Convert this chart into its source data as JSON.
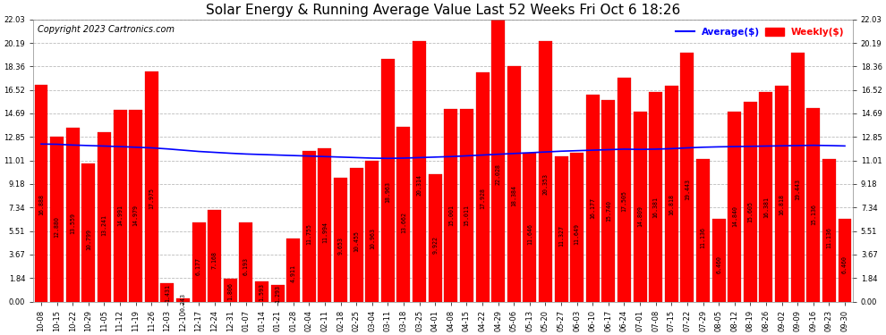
{
  "title": "Solar Energy & Running Average Value Last 52 Weeks Fri Oct 6 18:26",
  "copyright": "Copyright 2023 Cartronics.com",
  "categories": [
    "10-08",
    "10-15",
    "10-22",
    "10-29",
    "11-05",
    "11-12",
    "11-19",
    "11-26",
    "12-03",
    "12-10",
    "12-17",
    "12-24",
    "12-31",
    "01-07",
    "01-14",
    "01-21",
    "01-28",
    "02-04",
    "02-11",
    "02-18",
    "02-25",
    "03-04",
    "03-11",
    "03-18",
    "03-25",
    "04-01",
    "04-08",
    "04-15",
    "04-22",
    "04-29",
    "05-06",
    "05-13",
    "05-20",
    "05-27",
    "06-03",
    "06-10",
    "06-17",
    "06-24",
    "07-01",
    "07-08",
    "07-15",
    "07-22",
    "07-29",
    "08-05",
    "08-12",
    "08-19",
    "08-26",
    "09-02",
    "09-09",
    "09-16",
    "09-23",
    "09-30"
  ],
  "weekly_values": [
    16.888,
    12.88,
    13.559,
    10.799,
    13.241,
    14.991,
    14.979,
    17.975,
    1.431,
    0.243,
    6.177,
    7.168,
    1.806,
    6.193,
    1.593,
    1.293,
    4.911,
    11.755,
    11.994,
    9.653,
    10.455,
    10.963,
    18.963,
    13.662,
    20.314,
    9.922,
    15.001,
    15.011,
    17.928,
    22.028,
    18.384,
    11.646,
    20.353,
    11.327,
    11.649,
    16.177,
    15.74,
    17.505,
    14.809,
    16.381,
    16.818,
    19.443,
    11.136,
    6.46,
    14.84,
    15.605,
    16.381,
    16.818,
    19.443,
    15.136,
    11.136,
    6.46
  ],
  "average_values": [
    12.3,
    12.28,
    12.22,
    12.18,
    12.14,
    12.1,
    12.05,
    12.0,
    11.92,
    11.82,
    11.72,
    11.65,
    11.58,
    11.52,
    11.48,
    11.44,
    11.4,
    11.36,
    11.32,
    11.28,
    11.24,
    11.2,
    11.18,
    11.2,
    11.24,
    11.28,
    11.32,
    11.38,
    11.44,
    11.5,
    11.56,
    11.62,
    11.68,
    11.74,
    11.78,
    11.82,
    11.86,
    11.9,
    11.88,
    11.9,
    11.94,
    12.0,
    12.05,
    12.08,
    12.1,
    12.12,
    12.14,
    12.16,
    12.18,
    12.2,
    12.18,
    12.15
  ],
  "bar_color": "#ff0000",
  "line_color": "#0000ff",
  "background_color": "#ffffff",
  "grid_color": "#bbbbbb",
  "ytick_labels": [
    "0.00",
    "1.84",
    "3.67",
    "5.51",
    "7.34",
    "9.18",
    "11.01",
    "12.85",
    "14.69",
    "16.52",
    "18.36",
    "20.19",
    "22.03"
  ],
  "ytick_values": [
    0.0,
    1.84,
    3.67,
    5.51,
    7.34,
    9.18,
    11.01,
    12.85,
    14.69,
    16.52,
    18.36,
    20.19,
    22.03
  ],
  "ylim": [
    0,
    22.03
  ],
  "legend_average_label": "Average($)",
  "legend_weekly_label": "Weekly($)",
  "title_fontsize": 11,
  "copyright_fontsize": 7,
  "tick_fontsize": 6.0,
  "value_fontsize": 4.8
}
